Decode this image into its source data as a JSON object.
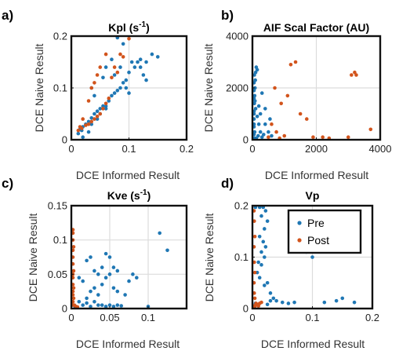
{
  "series_colors": {
    "Pre": "#1f77b4",
    "Post": "#d2541c"
  },
  "chart_data": [
    {
      "panel": "a)",
      "type": "scatter",
      "title": "Kpl (s",
      "title_sup": "-1",
      "title_end": ")",
      "xlabel": "DCE Informed Result",
      "ylabel": "DCE Naive Result",
      "xlim": [
        0,
        0.2
      ],
      "ylim": [
        0,
        0.2
      ],
      "grid": true,
      "xticks": [
        0,
        0.1,
        0.2
      ],
      "xtick_labels": [
        "0",
        "0.1",
        "0.2"
      ],
      "yticks": [
        0,
        0.1,
        0.2
      ],
      "ytick_labels": [
        "0",
        "0.1",
        "0.2"
      ],
      "series": [
        {
          "name": "Pre",
          "points": [
            [
              0.012,
              0.012
            ],
            [
              0.015,
              0.02
            ],
            [
              0.02,
              0.025
            ],
            [
              0.018,
              0.018
            ],
            [
              0.025,
              0.03
            ],
            [
              0.03,
              0.035
            ],
            [
              0.035,
              0.042
            ],
            [
              0.04,
              0.05
            ],
            [
              0.045,
              0.055
            ],
            [
              0.05,
              0.06
            ],
            [
              0.055,
              0.065
            ],
            [
              0.06,
              0.065
            ],
            [
              0.065,
              0.075
            ],
            [
              0.07,
              0.085
            ],
            [
              0.075,
              0.09
            ],
            [
              0.08,
              0.095
            ],
            [
              0.085,
              0.1
            ],
            [
              0.09,
              0.11
            ],
            [
              0.095,
              0.115
            ],
            [
              0.1,
              0.13
            ],
            [
              0.11,
              0.14
            ],
            [
              0.12,
              0.14
            ],
            [
              0.13,
              0.15
            ],
            [
              0.14,
              0.165
            ],
            [
              0.105,
              0.15
            ],
            [
              0.115,
              0.15
            ],
            [
              0.125,
              0.125
            ],
            [
              0.13,
              0.115
            ],
            [
              0.04,
              0.085
            ],
            [
              0.035,
              0.1
            ],
            [
              0.055,
              0.12
            ],
            [
              0.06,
              0.14
            ],
            [
              0.07,
              0.155
            ],
            [
              0.08,
              0.2
            ],
            [
              0.09,
              0.185
            ],
            [
              0.085,
              0.14
            ],
            [
              0.06,
              0.06
            ],
            [
              0.045,
              0.04
            ],
            [
              0.02,
              0.005
            ],
            [
              0.03,
              0.015
            ],
            [
              0.035,
              0.03
            ],
            [
              0.15,
              0.16
            ],
            [
              0.12,
              0.155
            ],
            [
              0.095,
              0.1
            ],
            [
              0.1,
              0.09
            ],
            [
              0.05,
              0.05
            ],
            [
              0.075,
              0.125
            ]
          ]
        },
        {
          "name": "Post",
          "points": [
            [
              0.012,
              0.018
            ],
            [
              0.018,
              0.022
            ],
            [
              0.025,
              0.028
            ],
            [
              0.03,
              0.03
            ],
            [
              0.035,
              0.035
            ],
            [
              0.04,
              0.04
            ],
            [
              0.045,
              0.045
            ],
            [
              0.05,
              0.05
            ],
            [
              0.055,
              0.06
            ],
            [
              0.06,
              0.07
            ],
            [
              0.065,
              0.08
            ],
            [
              0.07,
              0.12
            ],
            [
              0.075,
              0.14
            ],
            [
              0.08,
              0.13
            ],
            [
              0.085,
              0.165
            ],
            [
              0.09,
              0.16
            ],
            [
              0.1,
              0.195
            ],
            [
              0.045,
              0.125
            ],
            [
              0.035,
              0.1
            ],
            [
              0.03,
              0.075
            ],
            [
              0.02,
              0.04
            ],
            [
              0.015,
              0.025
            ],
            [
              0.06,
              0.165
            ],
            [
              0.05,
              0.14
            ],
            [
              0.04,
              0.11
            ]
          ]
        }
      ]
    },
    {
      "panel": "b)",
      "type": "scatter",
      "title": "AIF Scal Factor (AU)",
      "xlabel": "DCE Informed Result",
      "ylabel": "DCE Naive Result",
      "xlim": [
        0,
        4000
      ],
      "ylim": [
        0,
        4000
      ],
      "grid": true,
      "xticks": [
        0,
        2000,
        4000
      ],
      "xtick_labels": [
        "0",
        "2000",
        "4000"
      ],
      "yticks": [
        0,
        2000,
        4000
      ],
      "ytick_labels": [
        "0",
        "2000",
        "4000"
      ],
      "series": [
        {
          "name": "Pre",
          "points": [
            [
              20,
              200
            ],
            [
              30,
              500
            ],
            [
              40,
              800
            ],
            [
              50,
              1100
            ],
            [
              60,
              1400
            ],
            [
              70,
              1700
            ],
            [
              80,
              2000
            ],
            [
              90,
              2300
            ],
            [
              100,
              2600
            ],
            [
              120,
              2800
            ],
            [
              150,
              2700
            ],
            [
              60,
              2500
            ],
            [
              40,
              2200
            ],
            [
              30,
              1900
            ],
            [
              80,
              1500
            ],
            [
              100,
              1200
            ],
            [
              150,
              900
            ],
            [
              200,
              600
            ],
            [
              250,
              300
            ],
            [
              300,
              100
            ],
            [
              120,
              50
            ],
            [
              60,
              50
            ],
            [
              180,
              150
            ],
            [
              350,
              200
            ],
            [
              400,
              600
            ],
            [
              500,
              300
            ],
            [
              600,
              150
            ],
            [
              250,
              1000
            ],
            [
              200,
              1300
            ],
            [
              300,
              1800
            ],
            [
              20,
              1600
            ],
            [
              30,
              1000
            ],
            [
              50,
              600
            ],
            [
              70,
              300
            ],
            [
              400,
              1200
            ],
            [
              550,
              800
            ]
          ]
        },
        {
          "name": "Post",
          "points": [
            [
              700,
              2000
            ],
            [
              900,
              1400
            ],
            [
              1100,
              1700
            ],
            [
              1200,
              2900
            ],
            [
              1350,
              3000
            ],
            [
              1500,
              1000
            ],
            [
              1700,
              800
            ],
            [
              1900,
              100
            ],
            [
              2200,
              100
            ],
            [
              2400,
              50
            ],
            [
              3100,
              2500
            ],
            [
              3200,
              2600
            ],
            [
              3250,
              2500
            ],
            [
              3700,
              400
            ],
            [
              3000,
              100
            ],
            [
              750,
              300
            ],
            [
              850,
              50
            ],
            [
              1000,
              150
            ],
            [
              500,
              100
            ],
            [
              600,
              600
            ]
          ]
        }
      ]
    },
    {
      "panel": "c)",
      "type": "scatter",
      "title": "Kve (s",
      "title_sup": "-1",
      "title_end": ")",
      "xlabel": "DCE Informed Result",
      "ylabel": "DCE Naive Result",
      "xlim": [
        0,
        0.15
      ],
      "ylim": [
        0,
        0.15
      ],
      "grid": true,
      "xticks": [
        0,
        0.05,
        0.1
      ],
      "xtick_labels": [
        "0",
        "0.05",
        "0.1"
      ],
      "yticks": [
        0,
        0.05,
        0.1,
        0.15
      ],
      "ytick_labels": [
        "0",
        "0.05",
        "0.1",
        "0.15"
      ],
      "series": [
        {
          "name": "Pre",
          "points": [
            [
              0.115,
              0.11
            ],
            [
              0.125,
              0.085
            ],
            [
              0.08,
              0.05
            ],
            [
              0.075,
              0.04
            ],
            [
              0.085,
              0.045
            ],
            [
              0.05,
              0.075
            ],
            [
              0.045,
              0.08
            ],
            [
              0.055,
              0.06
            ],
            [
              0.06,
              0.055
            ],
            [
              0.04,
              0.06
            ],
            [
              0.035,
              0.05
            ],
            [
              0.03,
              0.055
            ],
            [
              0.025,
              0.075
            ],
            [
              0.02,
              0.07
            ],
            [
              0.03,
              0.03
            ],
            [
              0.04,
              0.035
            ],
            [
              0.045,
              0.045
            ],
            [
              0.05,
              0.05
            ],
            [
              0.055,
              0.03
            ],
            [
              0.06,
              0.025
            ],
            [
              0.035,
              0.02
            ],
            [
              0.025,
              0.025
            ],
            [
              0.02,
              0.015
            ],
            [
              0.015,
              0.04
            ],
            [
              0.01,
              0.045
            ],
            [
              0.03,
              0.01
            ],
            [
              0.04,
              0.005
            ],
            [
              0.05,
              0.005
            ],
            [
              0.055,
              0.003
            ],
            [
              0.06,
              0.005
            ],
            [
              0.045,
              0.003
            ],
            [
              0.035,
              0.005
            ],
            [
              0.025,
              0.003
            ],
            [
              0.015,
              0.005
            ],
            [
              0.02,
              0.008
            ],
            [
              0.065,
              0.004
            ],
            [
              0.1,
              0.003
            ],
            [
              0.07,
              0.02
            ],
            [
              0.005,
              0.002
            ],
            [
              0.01,
              0.01
            ]
          ]
        },
        {
          "name": "Post",
          "points": [
            [
              0.001,
              0.115
            ],
            [
              0.002,
              0.11
            ],
            [
              0.001,
              0.1
            ],
            [
              0.003,
              0.09
            ],
            [
              0.002,
              0.085
            ],
            [
              0.001,
              0.075
            ],
            [
              0.002,
              0.065
            ],
            [
              0.003,
              0.055
            ],
            [
              0.001,
              0.05
            ],
            [
              0.002,
              0.045
            ],
            [
              0.001,
              0.035
            ],
            [
              0.003,
              0.03
            ],
            [
              0.002,
              0.025
            ],
            [
              0.001,
              0.02
            ],
            [
              0.003,
              0.015
            ],
            [
              0.002,
              0.01
            ],
            [
              0.004,
              0.005
            ],
            [
              0.006,
              0.003
            ],
            [
              0.008,
              0.002
            ],
            [
              0.001,
              0.005
            ]
          ]
        }
      ]
    },
    {
      "panel": "d)",
      "type": "scatter",
      "title": "Vp",
      "xlabel": "DCE Informed Result",
      "ylabel": "DCE Naive Result",
      "xlim": [
        0,
        0.2
      ],
      "ylim": [
        0,
        0.2
      ],
      "grid": true,
      "xticks": [
        0,
        0.1,
        0.2
      ],
      "xtick_labels": [
        "0",
        "0.1",
        "0.2"
      ],
      "yticks": [
        0,
        0.1,
        0.2
      ],
      "ytick_labels": [
        "0",
        "0.1",
        "0.2"
      ],
      "legend": {
        "position": "top-right",
        "entries": [
          "Pre",
          "Post"
        ]
      },
      "series": [
        {
          "name": "Pre",
          "points": [
            [
              0.005,
              0.2
            ],
            [
              0.012,
              0.2
            ],
            [
              0.018,
              0.2
            ],
            [
              0.022,
              0.19
            ],
            [
              0.025,
              0.17
            ],
            [
              0.02,
              0.155
            ],
            [
              0.015,
              0.18
            ],
            [
              0.012,
              0.14
            ],
            [
              0.018,
              0.13
            ],
            [
              0.022,
              0.12
            ],
            [
              0.015,
              0.11
            ],
            [
              0.02,
              0.1
            ],
            [
              0.01,
              0.09
            ],
            [
              0.015,
              0.085
            ],
            [
              0.008,
              0.07
            ],
            [
              0.012,
              0.06
            ],
            [
              0.02,
              0.045
            ],
            [
              0.025,
              0.05
            ],
            [
              0.03,
              0.03
            ],
            [
              0.035,
              0.02
            ],
            [
              0.04,
              0.015
            ],
            [
              0.05,
              0.012
            ],
            [
              0.06,
              0.01
            ],
            [
              0.07,
              0.012
            ],
            [
              0.09,
              0.11
            ],
            [
              0.1,
              0.1
            ],
            [
              0.12,
              0.012
            ],
            [
              0.14,
              0.015
            ],
            [
              0.15,
              0.02
            ],
            [
              0.17,
              0.012
            ],
            [
              0.005,
              0.01
            ],
            [
              0.01,
              0.005
            ],
            [
              0.025,
              0.008
            ],
            [
              0.03,
              0.015
            ]
          ]
        },
        {
          "name": "Post",
          "points": [
            [
              0.002,
              0.19
            ],
            [
              0.003,
              0.17
            ],
            [
              0.004,
              0.14
            ],
            [
              0.002,
              0.12
            ],
            [
              0.003,
              0.09
            ],
            [
              0.004,
              0.07
            ],
            [
              0.002,
              0.05
            ],
            [
              0.003,
              0.03
            ],
            [
              0.004,
              0.02
            ],
            [
              0.006,
              0.01
            ],
            [
              0.008,
              0.008
            ],
            [
              0.01,
              0.005
            ],
            [
              0.012,
              0.01
            ],
            [
              0.015,
              0.012
            ],
            [
              0.002,
              0.005
            ],
            [
              0.004,
              0.004
            ]
          ]
        }
      ]
    }
  ]
}
